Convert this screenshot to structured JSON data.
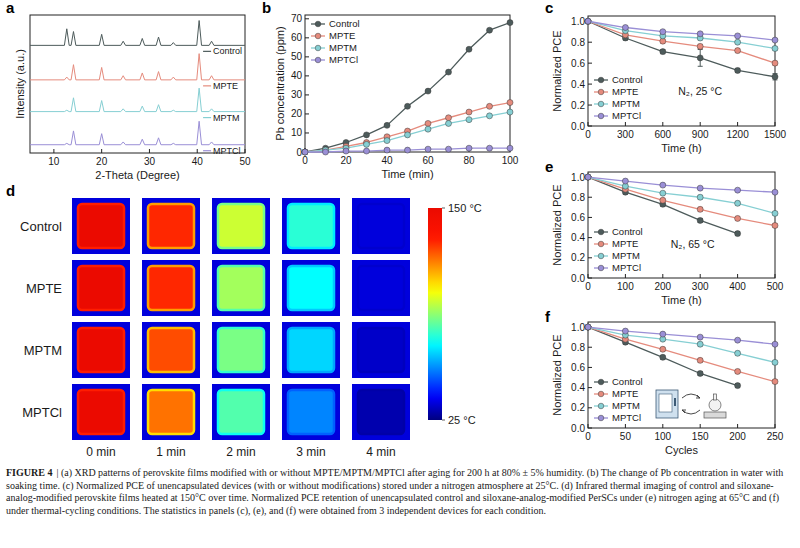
{
  "chart_data": [
    {
      "type": "line",
      "panel": "a",
      "x_label": "2-Theta (Degree)",
      "y_label": "Intensity (a.u.)",
      "xlim": [
        5,
        50
      ],
      "xticks": [
        10,
        20,
        30,
        40,
        50
      ],
      "ylim": [
        0,
        100
      ],
      "tick_labels": "x",
      "legend": "right",
      "x": [
        5,
        12.2,
        12.7,
        13.2,
        13.6,
        14.1,
        14.6,
        19.5,
        20.0,
        20.5,
        24.0,
        24.5,
        25.0,
        28.0,
        28.5,
        29.0,
        31.4,
        31.9,
        32.4,
        34.5,
        35.0,
        35.5,
        39.9,
        40.4,
        40.9,
        42.5,
        43.0,
        43.5,
        50
      ],
      "series": [
        {
          "name": "Control",
          "color": "#4d5b5b",
          "values": [
            78,
            78,
            90,
            78,
            78,
            88,
            78,
            78,
            86,
            78,
            78,
            81,
            78,
            78,
            83,
            78,
            78,
            84,
            78,
            78,
            80,
            78,
            78,
            96,
            78,
            78,
            81,
            78,
            78
          ]
        },
        {
          "name": "MPTE",
          "color": "#e58b7d",
          "values": [
            53,
            53,
            55,
            53,
            53,
            64,
            53,
            53,
            62,
            53,
            53,
            56,
            53,
            53,
            58,
            53,
            53,
            59,
            53,
            53,
            55,
            53,
            53,
            72,
            53,
            53,
            56,
            53,
            53
          ]
        },
        {
          "name": "MPTM",
          "color": "#86cfd3",
          "values": [
            30,
            30,
            31,
            30,
            30,
            40,
            30,
            30,
            38,
            30,
            30,
            32,
            30,
            30,
            34,
            30,
            30,
            35,
            30,
            30,
            31,
            30,
            30,
            47,
            30,
            30,
            32,
            30,
            30
          ]
        },
        {
          "name": "MPTCl",
          "color": "#9a8fd6",
          "values": [
            6,
            6,
            7,
            6,
            6,
            16,
            6,
            6,
            14,
            6,
            6,
            8,
            6,
            6,
            10,
            6,
            6,
            11,
            6,
            6,
            7,
            6,
            6,
            23,
            6,
            6,
            8,
            6,
            6
          ]
        }
      ]
    },
    {
      "type": "line",
      "panel": "b",
      "x_label": "Time (min)",
      "y_label": "Pb concentration (ppm)",
      "xlim": [
        0,
        100
      ],
      "xticks": [
        0,
        20,
        40,
        60,
        80,
        100
      ],
      "ylim": [
        0,
        72
      ],
      "yticks": [
        0,
        10,
        20,
        30,
        40,
        50,
        60,
        70
      ],
      "legend": "upper left",
      "x": [
        0,
        10,
        20,
        30,
        40,
        50,
        60,
        70,
        80,
        90,
        100
      ],
      "series": [
        {
          "name": "Control",
          "color": "#4d5b5b",
          "marker": "circle",
          "values": [
            0,
            2,
            5,
            9,
            14,
            24,
            32,
            42,
            54,
            64,
            68
          ]
        },
        {
          "name": "MPTE",
          "color": "#e58b7d",
          "marker": "circle",
          "values": [
            0,
            1,
            3,
            5,
            8,
            11,
            15,
            18,
            21,
            24,
            26
          ]
        },
        {
          "name": "MPTM",
          "color": "#86cfd3",
          "marker": "circle",
          "values": [
            0,
            1,
            2,
            4,
            6,
            9,
            12,
            15,
            17,
            19,
            21
          ]
        },
        {
          "name": "MPTCl",
          "color": "#9a8fd6",
          "marker": "circle",
          "values": [
            0,
            0,
            0.5,
            0.5,
            1,
            1,
            1.5,
            1.5,
            2,
            2,
            2
          ]
        }
      ]
    },
    {
      "type": "line",
      "panel": "c",
      "x_label": "Time (h)",
      "y_label": "Normalized PCE",
      "annotation": "N₂, 25 °C",
      "xlim": [
        0,
        1500
      ],
      "xticks": [
        0,
        300,
        600,
        900,
        1200,
        1500
      ],
      "ylim": [
        0,
        1.05
      ],
      "yticks": [
        {
          "value": 0,
          "label": "0.0"
        },
        0.2,
        0.4,
        0.6,
        0.8,
        {
          "value": 1,
          "label": "1.0"
        }
      ],
      "legend": "lower left",
      "x": [
        0,
        300,
        600,
        900,
        1200,
        1500
      ],
      "series": [
        {
          "name": "Control",
          "color": "#4d5b5b",
          "marker": "circle",
          "values": [
            1,
            0.84,
            0.71,
            0.65,
            0.53,
            0.47
          ],
          "errors": [
            0,
            0.02,
            0.02,
            0.08,
            0.02,
            0.03
          ]
        },
        {
          "name": "MPTE",
          "color": "#e58b7d",
          "marker": "circle",
          "values": [
            1,
            0.87,
            0.81,
            0.76,
            0.72,
            0.6
          ],
          "errors": [
            0,
            0.02,
            0.02,
            0.02,
            0.02,
            0.02
          ]
        },
        {
          "name": "MPTM",
          "color": "#86cfd3",
          "marker": "circle",
          "values": [
            1,
            0.91,
            0.86,
            0.84,
            0.8,
            0.74
          ],
          "errors": [
            0,
            0.01,
            0.01,
            0.02,
            0.01,
            0.02
          ]
        },
        {
          "name": "MPTCl",
          "color": "#9a8fd6",
          "marker": "circle",
          "values": [
            1,
            0.94,
            0.9,
            0.88,
            0.86,
            0.82
          ],
          "errors": [
            0,
            0.01,
            0.01,
            0.01,
            0.01,
            0.01
          ]
        }
      ]
    },
    {
      "type": "heatmap",
      "panel": "d",
      "rows": [
        "Control",
        "MPTE",
        "MPTM",
        "MPTCl"
      ],
      "columns": [
        "0 min",
        "1 min",
        "2 min",
        "3 min",
        "4 min"
      ],
      "cells": [
        [
          150,
          130,
          95,
          75,
          35
        ],
        [
          150,
          130,
          90,
          70,
          35
        ],
        [
          150,
          125,
          85,
          65,
          33
        ],
        [
          150,
          120,
          80,
          55,
          30
        ]
      ],
      "color_range": [
        25,
        150
      ],
      "color_ticks": [
        {
          "value": 150,
          "label": "150 °C"
        },
        {
          "value": 25,
          "label": "25 °C"
        }
      ]
    },
    {
      "type": "line",
      "panel": "e",
      "x_label": "Time (h)",
      "y_label": "Normalized PCE",
      "annotation": "N₂, 65 °C",
      "xlim": [
        0,
        500
      ],
      "xticks": [
        0,
        100,
        200,
        300,
        400,
        500
      ],
      "ylim": [
        0,
        1.05
      ],
      "yticks": [
        {
          "value": 0,
          "label": "0.0"
        },
        0.2,
        0.4,
        0.6,
        0.8,
        {
          "value": 1,
          "label": "1.0"
        }
      ],
      "legend": "lower left",
      "x": [
        0,
        100,
        200,
        300,
        400,
        500
      ],
      "series": [
        {
          "name": "Control",
          "color": "#4d5b5b",
          "marker": "circle",
          "values": [
            1,
            0.85,
            0.73,
            0.57,
            0.44,
            null
          ],
          "errors": [
            0,
            0.02,
            0.02,
            0.02,
            0.02,
            null
          ]
        },
        {
          "name": "MPTE",
          "color": "#e58b7d",
          "marker": "circle",
          "values": [
            1,
            0.88,
            0.77,
            0.68,
            0.59,
            0.52
          ],
          "errors": [
            0,
            0.01,
            0.02,
            0.02,
            0.02,
            0.02
          ]
        },
        {
          "name": "MPTM",
          "color": "#86cfd3",
          "marker": "circle",
          "values": [
            1,
            0.91,
            0.84,
            0.8,
            0.74,
            0.64
          ],
          "errors": [
            0,
            0.01,
            0.01,
            0.02,
            0.02,
            0.02
          ]
        },
        {
          "name": "MPTCl",
          "color": "#9a8fd6",
          "marker": "circle",
          "values": [
            1,
            0.96,
            0.92,
            0.89,
            0.87,
            0.85
          ],
          "errors": [
            0,
            0.01,
            0.01,
            0.01,
            0.01,
            0.01
          ]
        }
      ]
    },
    {
      "type": "line",
      "panel": "f",
      "x_label": "Cycles",
      "y_label": "Normalized PCE",
      "xlim": [
        0,
        250
      ],
      "xticks": [
        0,
        50,
        100,
        150,
        200,
        250
      ],
      "ylim": [
        0,
        1.05
      ],
      "yticks": [
        {
          "value": 0,
          "label": "0.0"
        },
        0.2,
        0.4,
        0.6,
        0.8,
        {
          "value": 1,
          "label": "1.0"
        }
      ],
      "legend": "lower left",
      "x": [
        0,
        50,
        100,
        150,
        200,
        250
      ],
      "series": [
        {
          "name": "Control",
          "color": "#4d5b5b",
          "marker": "circle",
          "values": [
            1,
            0.85,
            0.7,
            0.54,
            0.42,
            null
          ],
          "errors": [
            0,
            0.02,
            0.02,
            0.02,
            0.02,
            null
          ]
        },
        {
          "name": "MPTE",
          "color": "#e58b7d",
          "marker": "circle",
          "values": [
            1,
            0.88,
            0.78,
            0.67,
            0.56,
            0.46
          ],
          "errors": [
            0,
            0.01,
            0.02,
            0.02,
            0.02,
            0.02
          ]
        },
        {
          "name": "MPTM",
          "color": "#86cfd3",
          "marker": "circle",
          "values": [
            1,
            0.92,
            0.88,
            0.83,
            0.74,
            0.65
          ],
          "errors": [
            0,
            0.01,
            0.01,
            0.02,
            0.02,
            0.02
          ]
        },
        {
          "name": "MPTCl",
          "color": "#9a8fd6",
          "marker": "circle",
          "values": [
            1,
            0.96,
            0.93,
            0.9,
            0.87,
            0.83
          ],
          "errors": [
            0,
            0.01,
            0.01,
            0.01,
            0.01,
            0.01
          ]
        }
      ]
    }
  ],
  "caption": {
    "label": "FIGURE 4",
    "text": "| (a) XRD patterns of perovskite films modified with or without MPTE/MPTM/MPTCl after aging for 200 h at 80% ± 5% humidity. (b) The change of Pb concentration in water with soaking time. (c) Normalized PCE of unencapsulated devices (with or without modifications) stored under a nitrogen atmosphere at 25°C. (d) Infrared thermal imaging of control and siloxane-analog-modified perovskite films heated at 150°C over time. Normalized PCE retention of unencapsulated control and siloxane-analog-modified PerSCs under (e) nitrogen aging at 65°C and (f) under thermal-cycling conditions. The statistics in panels (c), (e), and (f) were obtained from 3 independent devices for each condition."
  }
}
